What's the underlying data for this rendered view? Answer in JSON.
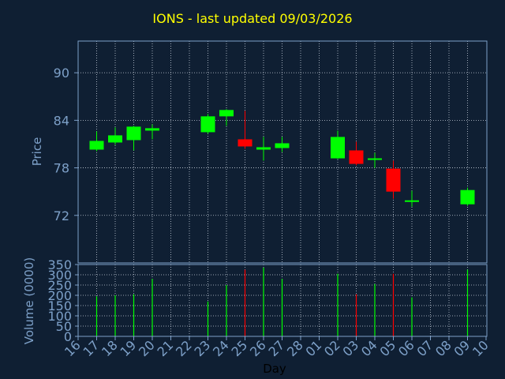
{
  "title": "IONS - last updated 09/03/2026",
  "chart_data": [
    {
      "type": "candlestick",
      "ylabel": "Price",
      "ylim": [
        66,
        94
      ],
      "yticks": [
        72,
        78,
        84,
        90
      ],
      "grid": true,
      "x_tick_labels": [
        "16",
        "17",
        "18",
        "19",
        "20",
        "21",
        "22",
        "23",
        "24",
        "25",
        "26",
        "27",
        "28",
        "01",
        "02",
        "03",
        "04",
        "05",
        "06",
        "07",
        "08",
        "09",
        "10"
      ],
      "candles": [
        {
          "day": "17",
          "open": 80.3,
          "close": 81.4,
          "high": 82.6,
          "low": 80.1
        },
        {
          "day": "18",
          "open": 81.2,
          "close": 82.1,
          "high": 83.1,
          "low": 80.9
        },
        {
          "day": "19",
          "open": 81.5,
          "close": 83.2,
          "high": 83.3,
          "low": 80.2
        },
        {
          "day": "20",
          "open": 82.7,
          "close": 83.0,
          "high": 83.5,
          "low": 81.6
        },
        {
          "day": "23",
          "open": 82.5,
          "close": 84.5,
          "high": 84.8,
          "low": 82.3
        },
        {
          "day": "24",
          "open": 84.5,
          "close": 85.3,
          "high": 85.4,
          "low": 83.3
        },
        {
          "day": "25",
          "open": 81.6,
          "close": 80.7,
          "high": 85.2,
          "low": 80.4
        },
        {
          "day": "26",
          "open": 80.3,
          "close": 80.6,
          "high": 81.9,
          "low": 78.9
        },
        {
          "day": "27",
          "open": 80.5,
          "close": 81.1,
          "high": 81.9,
          "low": 80.0
        },
        {
          "day": "02",
          "open": 79.2,
          "close": 81.9,
          "high": 82.7,
          "low": 79.1
        },
        {
          "day": "03",
          "open": 80.2,
          "close": 78.5,
          "high": 81.3,
          "low": 78.3
        },
        {
          "day": "04",
          "open": 79.0,
          "close": 79.2,
          "high": 79.9,
          "low": 78.0
        },
        {
          "day": "05",
          "open": 77.9,
          "close": 75.0,
          "high": 78.9,
          "low": 74.1
        },
        {
          "day": "06",
          "open": 73.8,
          "close": 73.9,
          "high": 75.1,
          "low": 73.1
        },
        {
          "day": "09",
          "open": 73.4,
          "close": 75.2,
          "high": 75.5,
          "low": 73.2
        }
      ]
    },
    {
      "type": "bar",
      "ylabel": "Volume (0000)",
      "xlabel": "Day",
      "ylim": [
        0,
        350
      ],
      "yticks": [
        0,
        50,
        100,
        150,
        200,
        250,
        300,
        350
      ],
      "grid": true,
      "x_tick_labels": [
        "16",
        "17",
        "18",
        "19",
        "20",
        "21",
        "22",
        "23",
        "24",
        "25",
        "26",
        "27",
        "28",
        "01",
        "02",
        "03",
        "04",
        "05",
        "06",
        "07",
        "08",
        "09",
        "10"
      ],
      "bars": [
        {
          "day": "17",
          "value": 195,
          "direction": "up"
        },
        {
          "day": "18",
          "value": 200,
          "direction": "up"
        },
        {
          "day": "19",
          "value": 205,
          "direction": "up"
        },
        {
          "day": "20",
          "value": 280,
          "direction": "up"
        },
        {
          "day": "23",
          "value": 170,
          "direction": "up"
        },
        {
          "day": "24",
          "value": 250,
          "direction": "up"
        },
        {
          "day": "25",
          "value": 325,
          "direction": "down"
        },
        {
          "day": "26",
          "value": 335,
          "direction": "up"
        },
        {
          "day": "27",
          "value": 280,
          "direction": "up"
        },
        {
          "day": "02",
          "value": 305,
          "direction": "up"
        },
        {
          "day": "03",
          "value": 205,
          "direction": "down"
        },
        {
          "day": "04",
          "value": 255,
          "direction": "up"
        },
        {
          "day": "05",
          "value": 305,
          "direction": "down"
        },
        {
          "day": "06",
          "value": 190,
          "direction": "up"
        },
        {
          "day": "09",
          "value": 325,
          "direction": "up"
        }
      ]
    }
  ],
  "colors": {
    "background": "#0f1f33",
    "title": "#ffff00",
    "axis_text": "#7da0c8",
    "frame": "#7da0c8",
    "grid": "#c8d0dc",
    "up": "#00ff00",
    "down": "#ff0000"
  }
}
